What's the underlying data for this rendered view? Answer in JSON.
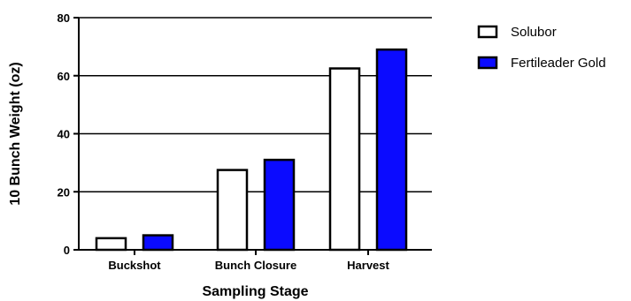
{
  "chart_data": {
    "type": "bar",
    "title": "",
    "xlabel": "Sampling Stage",
    "ylabel": "10 Bunch Weight (oz)",
    "categories": [
      "Buckshot",
      "Bunch Closure",
      "Harvest"
    ],
    "series": [
      {
        "name": "Solubor",
        "values": [
          4,
          27.5,
          62.5
        ],
        "color": "#ffffff"
      },
      {
        "name": "Fertileader Gold",
        "values": [
          5,
          31,
          69
        ],
        "color": "#0b0bff"
      }
    ],
    "ylim": [
      0,
      80
    ],
    "yticks": [
      0,
      20,
      40,
      60,
      80
    ],
    "grid": true,
    "legend_position": "top-right"
  }
}
